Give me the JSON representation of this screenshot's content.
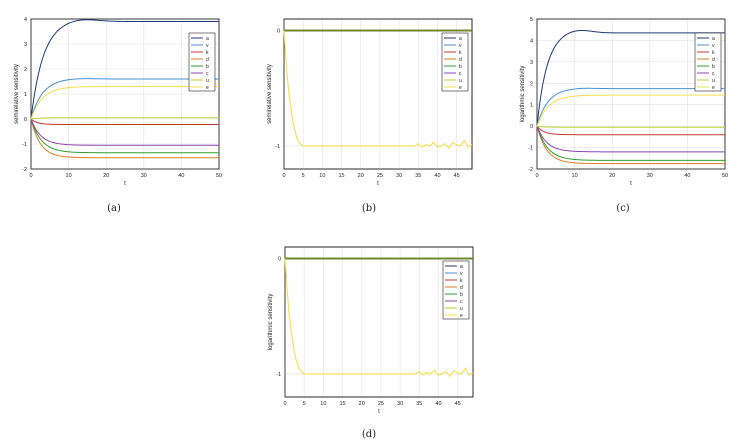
{
  "legend_labels": [
    "a",
    "v",
    "k",
    "d",
    "b",
    "c",
    "u",
    "e"
  ],
  "series_colors": [
    "#1f3a7a",
    "#4a90d9",
    "#c0392b",
    "#e07b20",
    "#2ca02c",
    "#8e44ad",
    "#b8d430",
    "#f2e04a"
  ],
  "chart_data": [
    {
      "type": "line",
      "caption": "(a)",
      "xlabel": "t",
      "ylabel": "semirelative sensitivity",
      "xlim": [
        0,
        50
      ],
      "ylim": [
        -2,
        4
      ],
      "xticks": [
        0,
        10,
        20,
        30,
        40,
        50
      ],
      "yticks": [
        -2,
        -1,
        0,
        1,
        2,
        3,
        4
      ],
      "grid": true,
      "legend_position": "top-right",
      "series": [
        {
          "name": "a",
          "color": "#1f3a7a",
          "final": 3.9,
          "tau": 3.2,
          "peak": 0.03
        },
        {
          "name": "v",
          "color": "#4a90d9",
          "final": 1.6,
          "tau": 3.0,
          "peak": 0.02
        },
        {
          "name": "k",
          "color": "#c0392b",
          "final": -0.22,
          "tau": 1.6,
          "peak": 0
        },
        {
          "name": "d",
          "color": "#e07b20",
          "final": -1.55,
          "tau": 2.5,
          "peak": 0
        },
        {
          "name": "b",
          "color": "#2ca02c",
          "final": -1.35,
          "tau": 2.8,
          "peak": 0
        },
        {
          "name": "c",
          "color": "#8e44ad",
          "final": -1.05,
          "tau": 2.6,
          "peak": 0
        },
        {
          "name": "u",
          "color": "#b8d430",
          "final": 0.05,
          "tau": 2.0,
          "peak": 0
        },
        {
          "name": "e",
          "color": "#f2e04a",
          "final": 1.3,
          "tau": 3.0,
          "peak": 0
        }
      ]
    },
    {
      "type": "line",
      "caption": "(b)",
      "xlabel": "t",
      "ylabel": "semirelative sensitivity",
      "xlim": [
        0,
        49
      ],
      "ylim": [
        -1.2,
        0.1
      ],
      "xticks": [
        0,
        5,
        10,
        15,
        20,
        25,
        30,
        35,
        40,
        45
      ],
      "yticks": [
        -1,
        0
      ],
      "grid": true,
      "legend_position": "top-right",
      "flat_series_value": 0,
      "yellow_series": {
        "name": "e",
        "x": [
          0,
          0.5,
          1,
          1.5,
          2,
          2.5,
          3,
          3.5,
          4,
          4.5,
          5,
          5.5,
          6,
          7,
          8,
          10,
          15,
          20,
          25,
          30,
          34,
          35,
          36,
          37,
          38,
          39,
          40,
          41,
          42,
          43,
          44,
          45,
          46,
          47,
          48,
          49
        ],
        "y": [
          0,
          -0.25,
          -0.45,
          -0.6,
          -0.72,
          -0.82,
          -0.89,
          -0.94,
          -0.97,
          -0.99,
          -1.0,
          -1.0,
          -1.0,
          -1.0,
          -1.0,
          -1.0,
          -1.0,
          -1.0,
          -1.0,
          -1.0,
          -1.0,
          -0.98,
          -1.01,
          -0.99,
          -1.0,
          -0.97,
          -1.01,
          -1.0,
          -0.98,
          -1.02,
          -0.97,
          -0.99,
          -1.0,
          -0.95,
          -1.01,
          -0.99
        ]
      }
    },
    {
      "type": "line",
      "caption": "(c)",
      "xlabel": "t",
      "ylabel": "logarithmic sensitivity",
      "xlim": [
        0,
        50
      ],
      "ylim": [
        -2,
        5
      ],
      "xticks": [
        0,
        10,
        20,
        30,
        40,
        50
      ],
      "yticks": [
        -2,
        -1,
        0,
        1,
        2,
        3,
        4,
        5
      ],
      "grid": true,
      "legend_position": "top-right",
      "series": [
        {
          "name": "a",
          "color": "#1f3a7a",
          "final": 4.35,
          "tau": 2.6,
          "peak": 0.04
        },
        {
          "name": "v",
          "color": "#4a90d9",
          "final": 1.75,
          "tau": 2.8,
          "peak": 0.02
        },
        {
          "name": "k",
          "color": "#c0392b",
          "final": -0.4,
          "tau": 1.8,
          "peak": 0
        },
        {
          "name": "d",
          "color": "#e07b20",
          "final": -1.75,
          "tau": 2.6,
          "peak": 0
        },
        {
          "name": "b",
          "color": "#2ca02c",
          "final": -1.6,
          "tau": 2.8,
          "peak": 0
        },
        {
          "name": "c",
          "color": "#8e44ad",
          "final": -1.2,
          "tau": 2.6,
          "peak": 0
        },
        {
          "name": "u",
          "color": "#b8d430",
          "final": -0.05,
          "tau": 1.8,
          "peak": 0
        },
        {
          "name": "e",
          "color": "#f2e04a",
          "final": 1.45,
          "tau": 3.0,
          "peak": 0
        }
      ]
    },
    {
      "type": "line",
      "caption": "(d)",
      "xlabel": "t",
      "ylabel": "logarithmic sensitivity",
      "xlim": [
        0,
        49
      ],
      "ylim": [
        -1.2,
        0.1
      ],
      "xticks": [
        0,
        5,
        10,
        15,
        20,
        25,
        30,
        35,
        40,
        45
      ],
      "yticks": [
        -1,
        0
      ],
      "grid": true,
      "legend_position": "top-right",
      "flat_series_value": 0,
      "yellow_series": {
        "name": "e",
        "x": [
          0,
          0.5,
          1,
          1.5,
          2,
          2.5,
          3,
          3.5,
          4,
          4.5,
          5,
          5.5,
          6,
          7,
          8,
          10,
          15,
          20,
          25,
          30,
          34,
          35,
          36,
          37,
          38,
          39,
          40,
          41,
          42,
          43,
          44,
          45,
          46,
          47,
          48,
          49
        ],
        "y": [
          0,
          -0.25,
          -0.45,
          -0.6,
          -0.72,
          -0.82,
          -0.89,
          -0.94,
          -0.97,
          -0.99,
          -1.0,
          -1.0,
          -1.0,
          -1.0,
          -1.0,
          -1.0,
          -1.0,
          -1.0,
          -1.0,
          -1.0,
          -1.0,
          -0.98,
          -1.01,
          -0.99,
          -1.0,
          -0.97,
          -1.01,
          -1.0,
          -0.98,
          -1.02,
          -0.97,
          -0.99,
          -1.0,
          -0.95,
          -1.01,
          -0.99
        ]
      }
    }
  ]
}
